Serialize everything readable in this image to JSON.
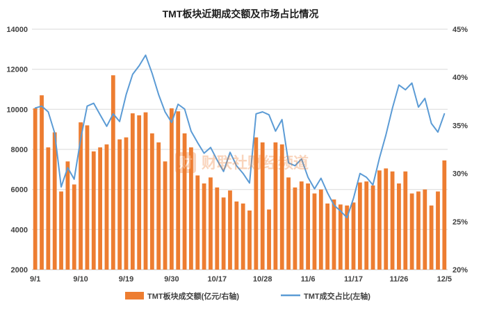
{
  "title": "TMT板块近期成交额及市场占比情况",
  "watermark": {
    "logo_char": "财",
    "text": "财联社财经频道"
  },
  "legend": [
    {
      "label": "TMT板块成交额(亿元/右轴)",
      "type": "bar",
      "color": "#ED7D31"
    },
    {
      "label": "TMT成交占比(左轴)",
      "type": "line",
      "color": "#5B9BD5"
    }
  ],
  "chart_data": {
    "type": "bar+line",
    "title": "TMT板块近期成交额及市场占比情况",
    "x_tick_labels": [
      "9/1",
      "9/10",
      "9/19",
      "9/30",
      "10/17",
      "10/28",
      "11/6",
      "11/17",
      "11/26",
      "12/5"
    ],
    "x_tick_indices": [
      0,
      7,
      14,
      21,
      28,
      35,
      42,
      49,
      56,
      63
    ],
    "bar_series": {
      "name": "TMT板块成交额(亿元/右轴)",
      "color": "#ED7D31",
      "unit": "亿元",
      "values": [
        10050,
        10700,
        8100,
        8850,
        5900,
        7400,
        6250,
        9350,
        9200,
        7900,
        8100,
        8250,
        11700,
        8500,
        8600,
        9800,
        9700,
        9850,
        8800,
        8350,
        7400,
        10050,
        9900,
        8800,
        8100,
        6700,
        6300,
        6600,
        6100,
        5600,
        5950,
        5400,
        5300,
        4950,
        8600,
        8350,
        5000,
        8350,
        8250,
        6600,
        6100,
        6400,
        6300,
        5800,
        6000,
        5300,
        5500,
        5250,
        5200,
        5350,
        6350,
        6400,
        6200,
        6950,
        7050,
        6900,
        6300,
        6900,
        5800,
        5900,
        6000,
        5200,
        5900,
        7450
      ]
    },
    "line_series": {
      "name": "TMT成交占比(左轴)",
      "color": "#5B9BD5",
      "unit": "%",
      "values": [
        36.8,
        37.0,
        36.4,
        34.2,
        28.6,
        30.6,
        29.4,
        33.6,
        37.0,
        37.3,
        36.1,
        34.9,
        36.2,
        35.4,
        38.2,
        40.3,
        41.2,
        42.3,
        40.4,
        38.2,
        36.4,
        35.3,
        37.2,
        36.7,
        34.4,
        33.2,
        32.1,
        32.7,
        31.4,
        30.2,
        32.2,
        30.8,
        30.0,
        29.0,
        36.2,
        36.4,
        36.1,
        34.4,
        35.6,
        31.1,
        30.8,
        31.5,
        29.6,
        28.4,
        29.5,
        28.0,
        26.7,
        26.1,
        25.4,
        27.4,
        30.0,
        29.6,
        28.8,
        31.6,
        34.0,
        36.8,
        39.2,
        38.7,
        39.4,
        36.9,
        37.8,
        35.2,
        34.3,
        36.2
      ]
    },
    "y_left": {
      "min": 2000,
      "max": 14000,
      "ticks": [
        2000,
        4000,
        6000,
        8000,
        10000,
        12000,
        14000
      ]
    },
    "y_right": {
      "min": 20,
      "max": 45,
      "tick_values": [
        20,
        25,
        30,
        35,
        40,
        45
      ],
      "ticks": [
        "20%",
        "25%",
        "30%",
        "35%",
        "40%",
        "45%"
      ]
    },
    "grid": true,
    "legend_position": "bottom",
    "grid_color": "#D9D9D9",
    "axis_color": "#BFBFBF"
  }
}
